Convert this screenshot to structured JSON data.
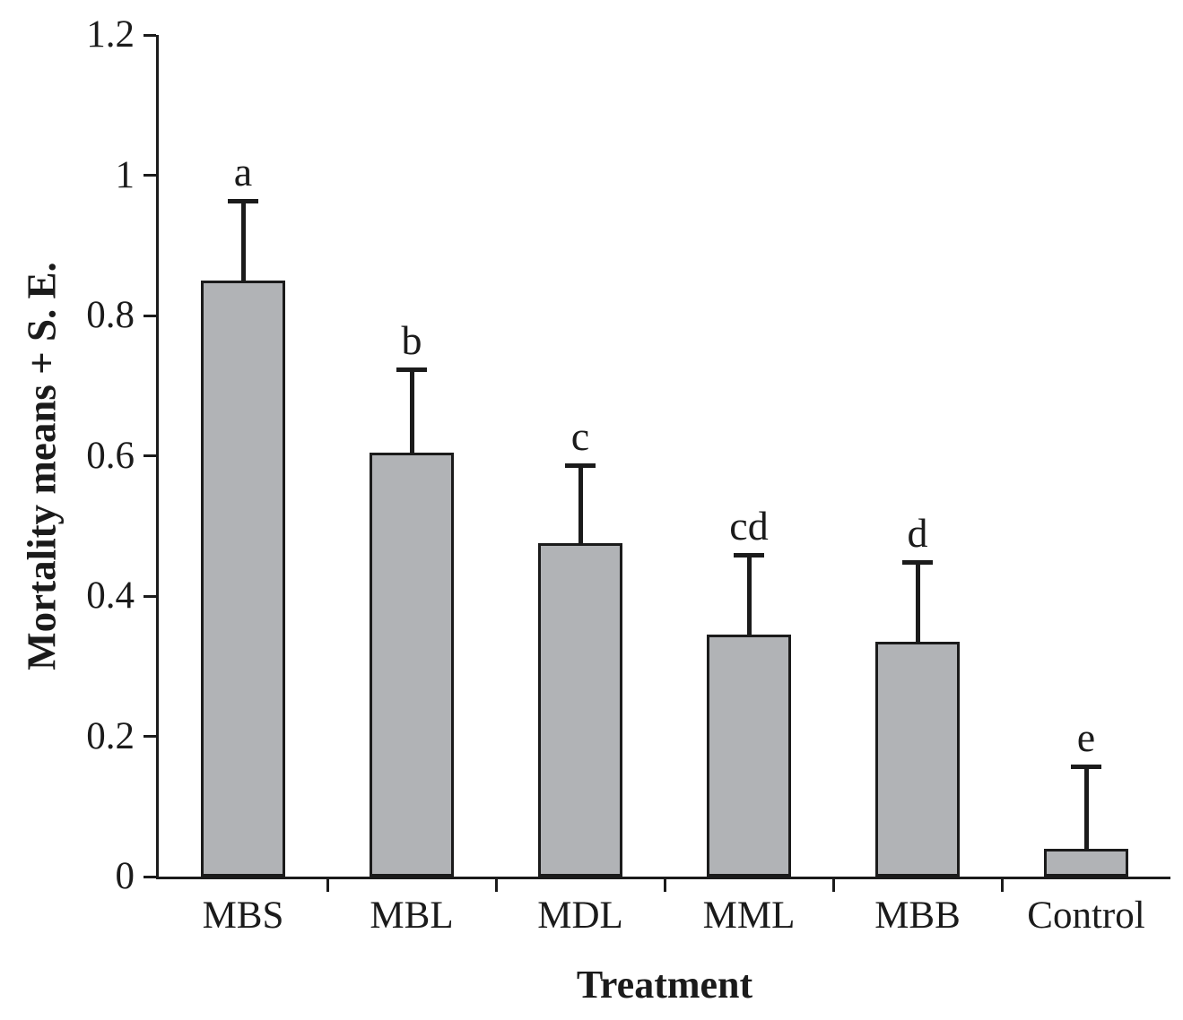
{
  "page": {
    "background": "#ffffff",
    "text_color": "#1b1b1b"
  },
  "chart_data": {
    "type": "bar",
    "title": "",
    "xlabel": "Treatment",
    "ylabel": "Mortality means + S. E.",
    "categories": [
      "MBS",
      "MBL",
      "MDL",
      "MML",
      "MBB",
      "Control"
    ],
    "values": [
      0.85,
      0.605,
      0.475,
      0.345,
      0.335,
      0.04
    ],
    "se_upper": [
      0.113,
      0.118,
      0.111,
      0.114,
      0.113,
      0.117
    ],
    "sig_letters": [
      "a",
      "b",
      "c",
      "cd",
      "d",
      "e"
    ],
    "ylim": [
      0,
      1.2
    ],
    "yticks": [
      0,
      0.2,
      0.4,
      0.6,
      0.8,
      1.0,
      1.2
    ],
    "ytick_labels": [
      "0",
      "0.2",
      "0.4",
      "0.6",
      "0.8",
      "1",
      "1.2"
    ],
    "grid": false,
    "legend": "none",
    "bar_color": "#b1b3b6",
    "bar_border_color": "#1b1b1b",
    "axis_color": "#1b1b1b",
    "error_bar_color": "#1b1b1b"
  }
}
